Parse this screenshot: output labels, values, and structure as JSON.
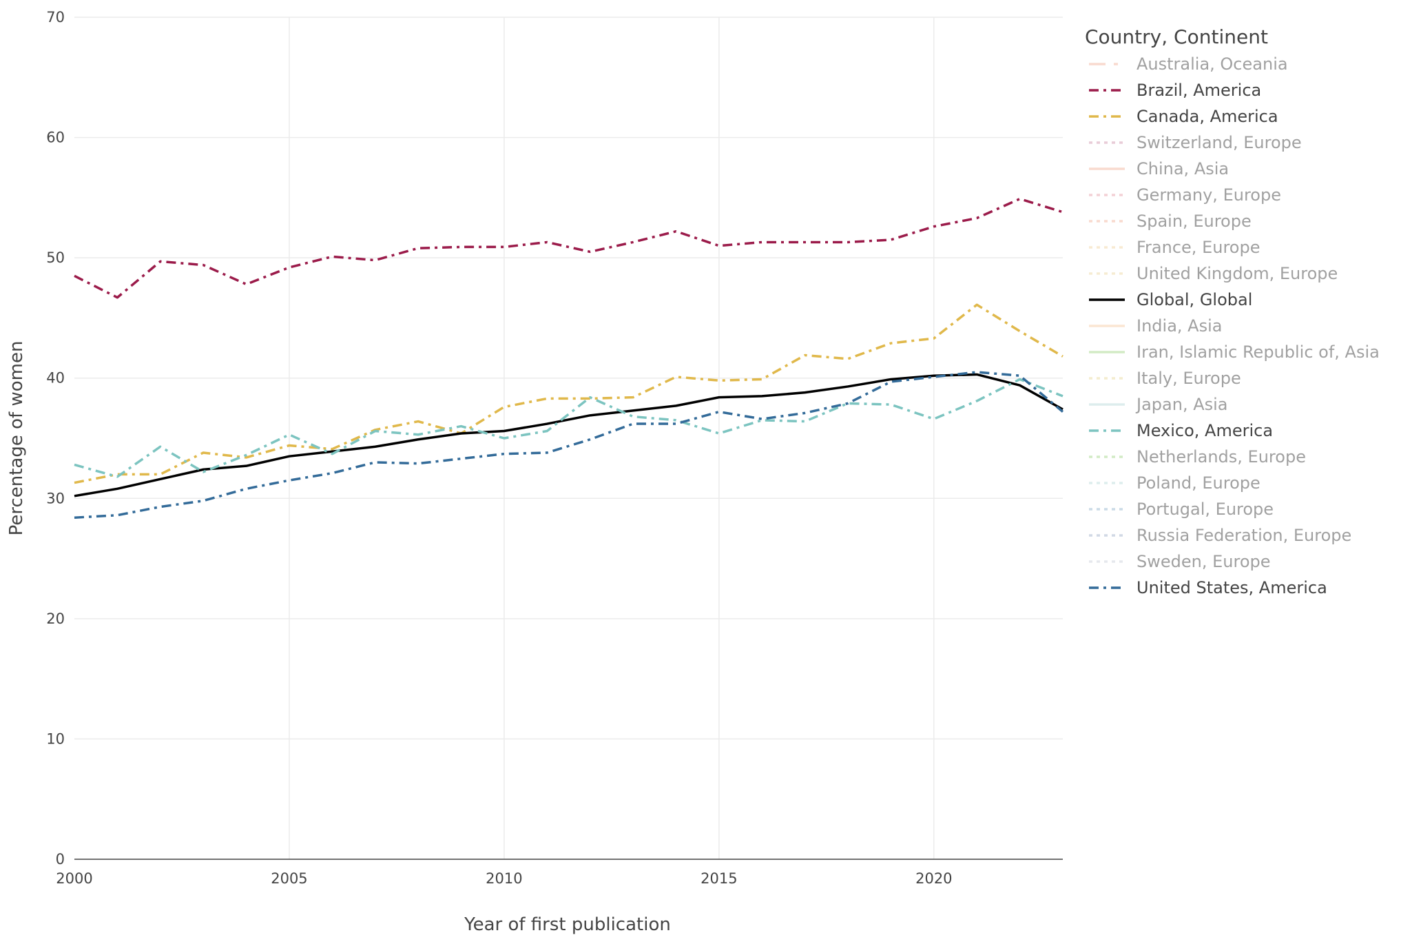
{
  "chart_data": {
    "type": "line",
    "title": "",
    "xlabel": "Year of first publication",
    "ylabel": "Percentage of women",
    "xlim": [
      2000,
      2023
    ],
    "ylim": [
      0,
      70
    ],
    "xticks": [
      2000,
      2005,
      2010,
      2015,
      2020
    ],
    "yticks": [
      0,
      10,
      20,
      30,
      40,
      50,
      60,
      70
    ],
    "grid": true,
    "legend": {
      "title": "Country, Continent",
      "placement": "right"
    },
    "x": [
      2000,
      2001,
      2002,
      2003,
      2004,
      2005,
      2006,
      2007,
      2008,
      2009,
      2010,
      2011,
      2012,
      2013,
      2014,
      2015,
      2016,
      2017,
      2018,
      2019,
      2020,
      2021,
      2022,
      2023
    ],
    "series": [
      {
        "name": "Australia, Oceania",
        "color": "#f4b6a0",
        "dash": "longdashdot",
        "visible": false
      },
      {
        "name": "Brazil, America",
        "color": "#9b1b4a",
        "dash": "dashdot",
        "visible": true,
        "values": [
          48.5,
          46.7,
          49.7,
          49.4,
          47.8,
          49.2,
          50.1,
          49.8,
          50.8,
          50.9,
          50.9,
          51.3,
          50.5,
          51.3,
          52.2,
          51.0,
          51.3,
          51.3,
          51.3,
          51.5,
          52.6,
          53.3,
          54.9,
          53.8
        ]
      },
      {
        "name": "Canada, America",
        "color": "#e0b84a",
        "dash": "dashdot",
        "visible": true,
        "values": [
          31.3,
          32.0,
          32.0,
          33.8,
          33.4,
          34.4,
          34.1,
          35.7,
          36.4,
          35.4,
          37.6,
          38.3,
          38.3,
          38.4,
          40.1,
          39.8,
          39.9,
          41.9,
          41.6,
          42.9,
          43.3,
          46.1,
          43.9,
          41.8
        ]
      },
      {
        "name": "Switzerland, Europe",
        "color": "#d49ab0",
        "dash": "dot",
        "visible": false
      },
      {
        "name": "China, Asia",
        "color": "#f4b6a0",
        "dash": "solid",
        "visible": false
      },
      {
        "name": "Germany, Europe",
        "color": "#e8a4ae",
        "dash": "dot",
        "visible": false
      },
      {
        "name": "Spain, Europe",
        "color": "#f4b6a0",
        "dash": "dot",
        "visible": false
      },
      {
        "name": "France, Europe",
        "color": "#f2d6a6",
        "dash": "dot",
        "visible": false
      },
      {
        "name": "United Kingdom, Europe",
        "color": "#eedaa6",
        "dash": "dot",
        "visible": false
      },
      {
        "name": "Global, Global",
        "color": "#000000",
        "dash": "solid",
        "visible": true,
        "values": [
          30.2,
          30.8,
          31.6,
          32.4,
          32.7,
          33.5,
          33.9,
          34.3,
          34.9,
          35.4,
          35.6,
          36.2,
          36.9,
          37.3,
          37.7,
          38.4,
          38.5,
          38.8,
          39.3,
          39.9,
          40.2,
          40.3,
          39.4,
          37.4
        ]
      },
      {
        "name": "India, Asia",
        "color": "#f6cfa6",
        "dash": "solid",
        "visible": false
      },
      {
        "name": "Iran, Islamic Republic of, Asia",
        "color": "#a6d88c",
        "dash": "solid",
        "visible": false
      },
      {
        "name": "Italy, Europe",
        "color": "#eadba0",
        "dash": "dot",
        "visible": false
      },
      {
        "name": "Japan, Asia",
        "color": "#bcdcdc",
        "dash": "solid",
        "visible": false
      },
      {
        "name": "Mexico, America",
        "color": "#7cc4c0",
        "dash": "dashdot",
        "visible": true,
        "values": [
          32.8,
          31.8,
          34.3,
          32.2,
          33.6,
          35.3,
          33.7,
          35.6,
          35.3,
          36.0,
          35.0,
          35.6,
          38.4,
          36.8,
          36.5,
          35.4,
          36.5,
          36.4,
          37.9,
          37.8,
          36.6,
          38.1,
          39.9,
          38.5
        ]
      },
      {
        "name": "Netherlands, Europe",
        "color": "#a6d88c",
        "dash": "dot",
        "visible": false
      },
      {
        "name": "Poland, Europe",
        "color": "#bcdedc",
        "dash": "dot",
        "visible": false
      },
      {
        "name": "Portugal, Europe",
        "color": "#98b8d0",
        "dash": "dot",
        "visible": false
      },
      {
        "name": "Russia Federation, Europe",
        "color": "#a4b4cc",
        "dash": "dot",
        "visible": false
      },
      {
        "name": "Sweden, Europe",
        "color": "#cfd2dc",
        "dash": "dot",
        "visible": false
      },
      {
        "name": "United States, America",
        "color": "#336b99",
        "dash": "dashdot",
        "visible": true,
        "values": [
          28.4,
          28.6,
          29.3,
          29.8,
          30.8,
          31.5,
          32.1,
          33.0,
          32.9,
          33.3,
          33.7,
          33.8,
          34.9,
          36.2,
          36.2,
          37.2,
          36.6,
          37.1,
          37.9,
          39.7,
          40.1,
          40.5,
          40.2,
          37.2
        ]
      }
    ]
  }
}
